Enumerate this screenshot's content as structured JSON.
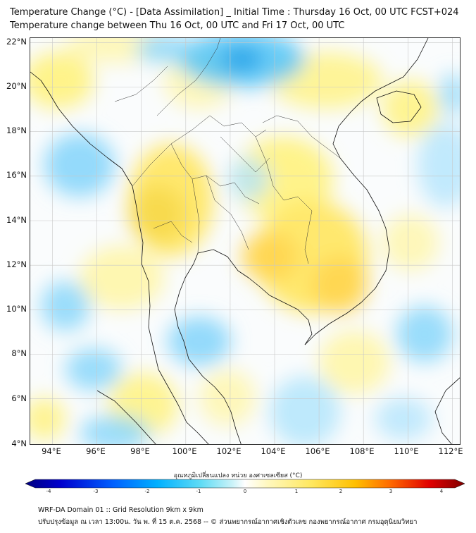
{
  "title": {
    "line1": "Temperature Change (°C) - [Data Assimilation] _ Initial Time : Thursday 16 Oct, 00 UTC FCST+024",
    "line2": "Temperature change between Thu 16 Oct, 00 UTC and Fri 17 Oct, 00 UTC"
  },
  "map": {
    "lat_labels": [
      "22°N",
      "20°N",
      "18°N",
      "16°N",
      "14°N",
      "12°N",
      "10°N",
      "8°N",
      "6°N",
      "4°N"
    ],
    "lon_labels": [
      "94°E",
      "96°E",
      "98°E",
      "100°E",
      "102°E",
      "104°E",
      "106°E",
      "108°E",
      "110°E",
      "112°E"
    ],
    "lat_range": [
      4,
      22.3
    ],
    "lon_range": [
      93,
      112.4
    ]
  },
  "colorbar": {
    "title": "อุณหภูมิเปลี่ยนแปลง หน่วย องศาเซลเซียส (°C)",
    "ticks": [
      "-4",
      "-3",
      "-2",
      "-1",
      "0",
      "1",
      "2",
      "3",
      "4"
    ],
    "range": [
      -4,
      4
    ],
    "colors": [
      "#000080",
      "#0000cd",
      "#0050ff",
      "#00a0ff",
      "#40d0f5",
      "#a0ebf5",
      "#ffffff",
      "#fff5a0",
      "#ffe040",
      "#ffb000",
      "#ff6000",
      "#e00000",
      "#800000"
    ]
  },
  "footer": {
    "line1": "WRF-DA Domain 01 :: Grid Resolution 9km x 9km",
    "line2": "ปรับปรุงข้อมูล ณ เวลา 13:00น. วัน พ. ที่ 15 ต.ค. 2568 -- © ส่วนพยากรณ์อากาศเชิงตัวเลข กองพยากรณ์อากาศ กรมอุตุนิยมวิทยา"
  }
}
